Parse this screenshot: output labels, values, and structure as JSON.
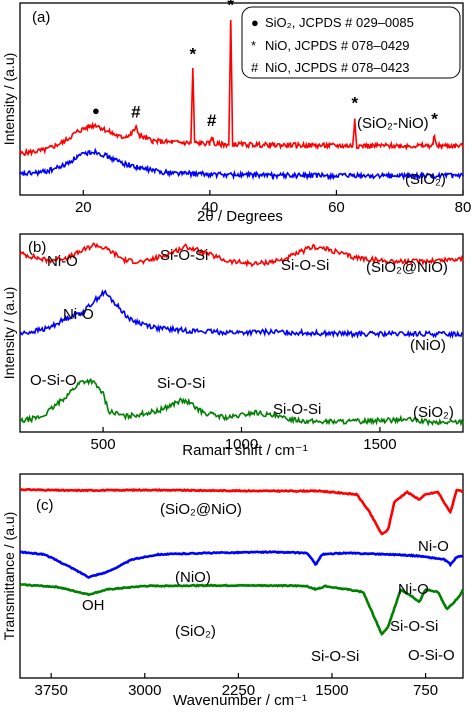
{
  "panel_a": {
    "panel_label": "(a)",
    "legend": [
      {
        "symbol": "●",
        "text": "SiO₂, JCPDS # 029–0085"
      },
      {
        "symbol": "*",
        "text": "NiO, JCPDS  # 078–0429"
      },
      {
        "symbol": "#",
        "text": "NiO, JCPDS  # 078–0423"
      }
    ]
  },
  "panel_b": {
    "panel_label": "(b)"
  },
  "panel_c": {
    "panel_label": "(c)"
  },
  "chart_data": [
    {
      "type": "line",
      "ylabel": "Intensity / (a.u)",
      "xlabel": "2θ / Degrees",
      "xlim": [
        10,
        80
      ],
      "ticks_x": [
        20,
        40,
        60,
        80
      ],
      "colors": {
        "SiO2-NiO": "#ff0000",
        "SiO2": "#0000ff"
      },
      "series": [
        {
          "name": "(SiO₂-NiO)",
          "color": "#ff0000",
          "points": [
            [
              10,
              0.35
            ],
            [
              14,
              0.4
            ],
            [
              17,
              0.52
            ],
            [
              19,
              0.66
            ],
            [
              21,
              0.74
            ],
            [
              22,
              0.76
            ],
            [
              24,
              0.66
            ],
            [
              26,
              0.58
            ],
            [
              27.5,
              0.62
            ],
            [
              28.3,
              0.72
            ],
            [
              29,
              0.6
            ],
            [
              31,
              0.53
            ],
            [
              34,
              0.51
            ],
            [
              37,
              0.5
            ],
            [
              37.3,
              1.55
            ],
            [
              37.6,
              0.5
            ],
            [
              40,
              0.49
            ],
            [
              40.3,
              0.6
            ],
            [
              40.7,
              0.48
            ],
            [
              43,
              0.48
            ],
            [
              43.3,
              2.25
            ],
            [
              43.6,
              0.48
            ],
            [
              50,
              0.47
            ],
            [
              62.6,
              0.46
            ],
            [
              62.9,
              0.85
            ],
            [
              63.2,
              0.46
            ],
            [
              70,
              0.46
            ],
            [
              75.2,
              0.46
            ],
            [
              75.5,
              0.62
            ],
            [
              75.8,
              0.46
            ],
            [
              80,
              0.46
            ]
          ]
        },
        {
          "name": "(SiO₂)",
          "color": "#0000ff",
          "points": [
            [
              10,
              0.05
            ],
            [
              14,
              0.09
            ],
            [
              17,
              0.18
            ],
            [
              19,
              0.3
            ],
            [
              21,
              0.37
            ],
            [
              22,
              0.38
            ],
            [
              24,
              0.3
            ],
            [
              26,
              0.22
            ],
            [
              29,
              0.14
            ],
            [
              33,
              0.08
            ],
            [
              40,
              0.05
            ],
            [
              50,
              0.04
            ],
            [
              60,
              0.03
            ],
            [
              70,
              0.03
            ],
            [
              80,
              0.03
            ]
          ]
        }
      ],
      "annotations": [
        {
          "x": 22,
          "mark": "●"
        },
        {
          "x": 28.3,
          "mark": "#"
        },
        {
          "x": 37.3,
          "mark": "*"
        },
        {
          "x": 40.3,
          "mark": "#"
        },
        {
          "x": 43.3,
          "mark": "*"
        },
        {
          "x": 62.9,
          "mark": "*"
        },
        {
          "x": 75.5,
          "mark": "*"
        }
      ]
    },
    {
      "type": "line",
      "ylabel": "Intensity / (a.u)",
      "xlabel": "Raman shift / cm⁻¹",
      "xlim": [
        200,
        1800
      ],
      "ticks_x": [
        500,
        1000,
        1500
      ],
      "colors": {
        "SiO2@NiO": "#ff0000",
        "NiO": "#0000ff",
        "SiO2": "#008000"
      },
      "series": [
        {
          "name": "(SiO₂@NiO)",
          "color": "#ff0000",
          "points": [
            [
              200,
              2.45
            ],
            [
              300,
              2.35
            ],
            [
              380,
              2.4
            ],
            [
              470,
              2.58
            ],
            [
              520,
              2.5
            ],
            [
              580,
              2.35
            ],
            [
              650,
              2.33
            ],
            [
              720,
              2.42
            ],
            [
              800,
              2.55
            ],
            [
              860,
              2.47
            ],
            [
              950,
              2.34
            ],
            [
              1050,
              2.3
            ],
            [
              1150,
              2.36
            ],
            [
              1260,
              2.55
            ],
            [
              1320,
              2.5
            ],
            [
              1400,
              2.4
            ],
            [
              1500,
              2.35
            ],
            [
              1600,
              2.33
            ],
            [
              1700,
              2.35
            ],
            [
              1800,
              2.38
            ]
          ]
        },
        {
          "name": "(NiO)",
          "color": "#0000ff",
          "points": [
            [
              200,
              1.3
            ],
            [
              300,
              1.38
            ],
            [
              380,
              1.55
            ],
            [
              430,
              1.62
            ],
            [
              470,
              1.78
            ],
            [
              505,
              1.9
            ],
            [
              540,
              1.75
            ],
            [
              600,
              1.5
            ],
            [
              700,
              1.38
            ],
            [
              800,
              1.35
            ],
            [
              900,
              1.33
            ],
            [
              1000,
              1.32
            ],
            [
              1100,
              1.33
            ],
            [
              1200,
              1.32
            ],
            [
              1300,
              1.31
            ],
            [
              1400,
              1.3
            ],
            [
              1500,
              1.3
            ],
            [
              1600,
              1.3
            ],
            [
              1700,
              1.3
            ],
            [
              1800,
              1.3
            ]
          ]
        },
        {
          "name": "(SiO₂)",
          "color": "#008000",
          "points": [
            [
              200,
              0.05
            ],
            [
              280,
              0.12
            ],
            [
              350,
              0.35
            ],
            [
              420,
              0.62
            ],
            [
              460,
              0.63
            ],
            [
              500,
              0.45
            ],
            [
              520,
              0.2
            ],
            [
              580,
              0.12
            ],
            [
              700,
              0.2
            ],
            [
              780,
              0.35
            ],
            [
              810,
              0.32
            ],
            [
              860,
              0.18
            ],
            [
              950,
              0.1
            ],
            [
              1050,
              0.18
            ],
            [
              1150,
              0.1
            ],
            [
              1250,
              0.05
            ],
            [
              1400,
              0.05
            ],
            [
              1600,
              0.08
            ],
            [
              1700,
              0.03
            ],
            [
              1800,
              0.05
            ]
          ]
        }
      ],
      "peak_labels": [
        {
          "text": "Ni-O",
          "x": 450,
          "level": "top"
        },
        {
          "text": "Si-O-Si",
          "x": 800,
          "level": "top"
        },
        {
          "text": "Si-O-Si",
          "x": 1280,
          "level": "top"
        },
        {
          "text": "Ni-O",
          "x": 450,
          "level": "middle"
        },
        {
          "text": "O-Si-O",
          "x": 420,
          "level": "bottom"
        },
        {
          "text": "Si-O-Si",
          "x": 800,
          "level": "bottom"
        },
        {
          "text": "Si-O-Si",
          "x": 1200,
          "level": "bottom"
        }
      ]
    },
    {
      "type": "line",
      "ylabel": "Transmittance / (a.u)",
      "xlabel": "Wavenumber / cm⁻¹",
      "xlim": [
        4000,
        450
      ],
      "ticks_x": [
        3750,
        3000,
        2250,
        1500,
        750
      ],
      "colors": {
        "SiO2@NiO": "#ff0000",
        "NiO": "#0000ff",
        "SiO2": "#008000"
      },
      "series": [
        {
          "name": "(SiO₂@NiO)",
          "color": "#ff0000",
          "points": [
            [
              4000,
              3.45
            ],
            [
              3600,
              3.43
            ],
            [
              3000,
              3.44
            ],
            [
              2500,
              3.43
            ],
            [
              2000,
              3.42
            ],
            [
              1600,
              3.42
            ],
            [
              1300,
              3.35
            ],
            [
              1200,
              3.0
            ],
            [
              1100,
              2.55
            ],
            [
              1050,
              2.65
            ],
            [
              1000,
              3.2
            ],
            [
              900,
              3.4
            ],
            [
              800,
              3.25
            ],
            [
              750,
              3.35
            ],
            [
              650,
              3.4
            ],
            [
              580,
              3.1
            ],
            [
              550,
              3.0
            ],
            [
              500,
              3.45
            ],
            [
              450,
              3.4
            ]
          ]
        },
        {
          "name": "(NiO)",
          "color": "#0000ff",
          "points": [
            [
              4000,
              2.2
            ],
            [
              3800,
              2.15
            ],
            [
              3600,
              1.9
            ],
            [
              3450,
              1.7
            ],
            [
              3300,
              1.8
            ],
            [
              3100,
              2.05
            ],
            [
              2900,
              2.15
            ],
            [
              2500,
              2.18
            ],
            [
              2000,
              2.2
            ],
            [
              1700,
              2.18
            ],
            [
              1630,
              1.95
            ],
            [
              1580,
              2.15
            ],
            [
              1400,
              2.18
            ],
            [
              1000,
              2.15
            ],
            [
              800,
              2.12
            ],
            [
              600,
              2.05
            ],
            [
              550,
              1.95
            ],
            [
              500,
              2.1
            ],
            [
              450,
              2.12
            ]
          ]
        },
        {
          "name": "(SiO₂)",
          "color": "#008000",
          "points": [
            [
              4000,
              1.55
            ],
            [
              3700,
              1.5
            ],
            [
              3450,
              1.35
            ],
            [
              3300,
              1.45
            ],
            [
              3000,
              1.52
            ],
            [
              2500,
              1.53
            ],
            [
              2000,
              1.53
            ],
            [
              1700,
              1.52
            ],
            [
              1630,
              1.45
            ],
            [
              1550,
              1.52
            ],
            [
              1250,
              1.4
            ],
            [
              1100,
              0.55
            ],
            [
              1050,
              0.7
            ],
            [
              950,
              1.45
            ],
            [
              850,
              1.3
            ],
            [
              800,
              1.2
            ],
            [
              750,
              1.45
            ],
            [
              650,
              1.4
            ],
            [
              580,
              1.05
            ],
            [
              540,
              1.15
            ],
            [
              470,
              1.35
            ],
            [
              450,
              1.45
            ]
          ]
        }
      ],
      "peak_labels": [
        {
          "text": "Ni-O",
          "x": 520,
          "level": "top"
        },
        {
          "text": "Ni-O",
          "x": 650,
          "level": "middle"
        },
        {
          "text": "OH",
          "x": 3450,
          "level": "middle"
        },
        {
          "text": "Si-O-Si",
          "x": 1200,
          "level": "bottom"
        },
        {
          "text": "Si-O-Si",
          "x": 780,
          "level": "bottom"
        },
        {
          "text": "O-Si-O",
          "x": 560,
          "level": "bottom"
        }
      ]
    }
  ]
}
